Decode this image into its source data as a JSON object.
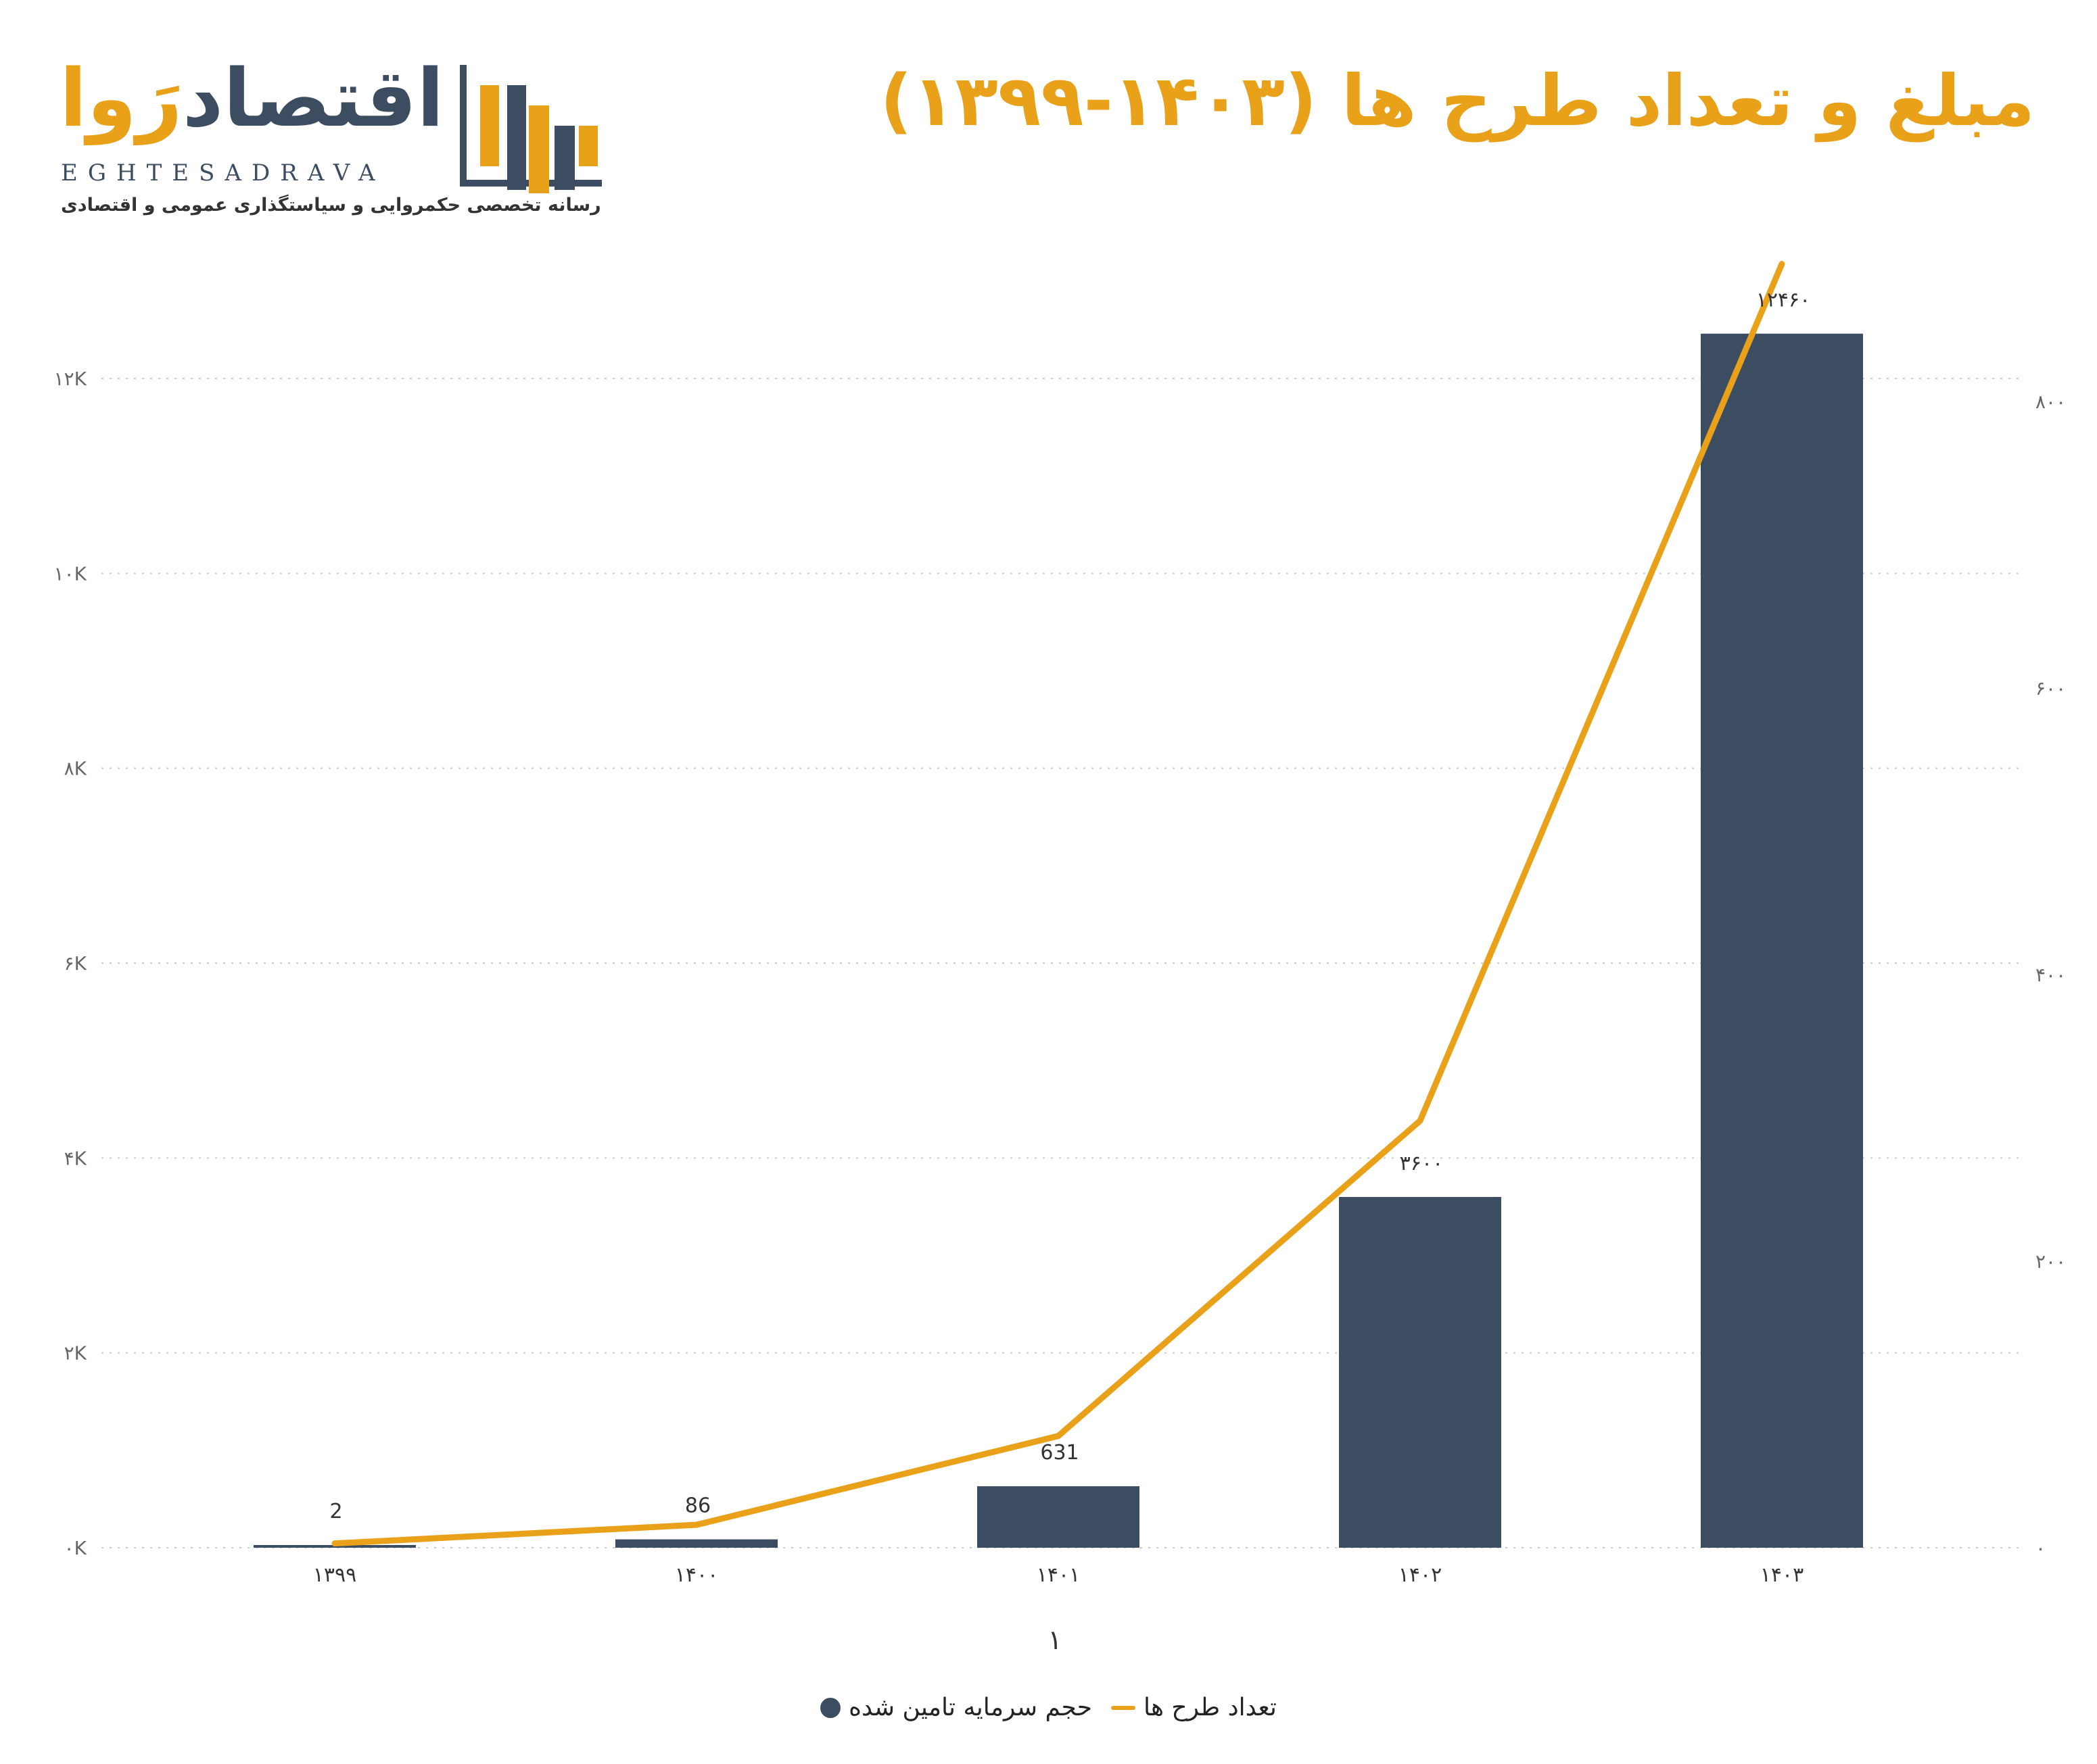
{
  "title": "مبلغ و تعداد طرح ها (۱۴۰۳-۱۳۹۹)",
  "logo": {
    "name_part_a": "اقتصاد",
    "name_part_b": "رَوا",
    "name_en": "EGHTESADRAVA",
    "tagline": "رسانه تخصصی حکمروایی و سیاستگذاری عمومی و اقتصادی"
  },
  "colors": {
    "bar": "#3C4D61",
    "line": "#E9A11A",
    "line_label_halo": "#F8E6C4",
    "grid": "#CCCCCC"
  },
  "chart_data": {
    "type": "bar",
    "title": "مبلغ و تعداد طرح ها (۱۴۰۳-۱۳۹۹)",
    "xlabel": "۱",
    "categories": [
      "۱۳۹۹",
      "۱۴۰۰",
      "۱۴۰۱",
      "۱۴۰۲",
      "۱۴۰۳"
    ],
    "series": [
      {
        "name": "حجم سرمایه تامین شده",
        "type": "bar",
        "axis": "left",
        "values": [
          2,
          86,
          631,
          3600,
          12460
        ],
        "labels": [
          "2",
          "86",
          "631",
          "۳۶۰۰",
          "۱۲۴۶۰"
        ]
      },
      {
        "name": "تعداد طرح ها",
        "type": "line",
        "axis": "right",
        "values": [
          3,
          16,
          78,
          298,
          896
        ]
      }
    ],
    "y_left": {
      "ylim": [
        0,
        12000
      ],
      "ticks": [
        0,
        2000,
        4000,
        6000,
        8000,
        10000,
        12000
      ],
      "tick_labels": [
        "۰K",
        "۲K",
        "۴K",
        "۶K",
        "۸K",
        "۱۰K",
        "۱۲K"
      ]
    },
    "y_right": {
      "ylim": [
        0,
        800
      ],
      "ticks": [
        0,
        200,
        400,
        600,
        800
      ],
      "tick_labels": [
        "۰",
        "۲۰۰",
        "۴۰۰",
        "۶۰۰",
        "۸۰۰"
      ]
    },
    "grid": true,
    "legend_position": "bottom-center"
  },
  "legend": {
    "line_label": "تعداد طرح ها",
    "bar_label": "حجم سرمایه تامین شده"
  }
}
